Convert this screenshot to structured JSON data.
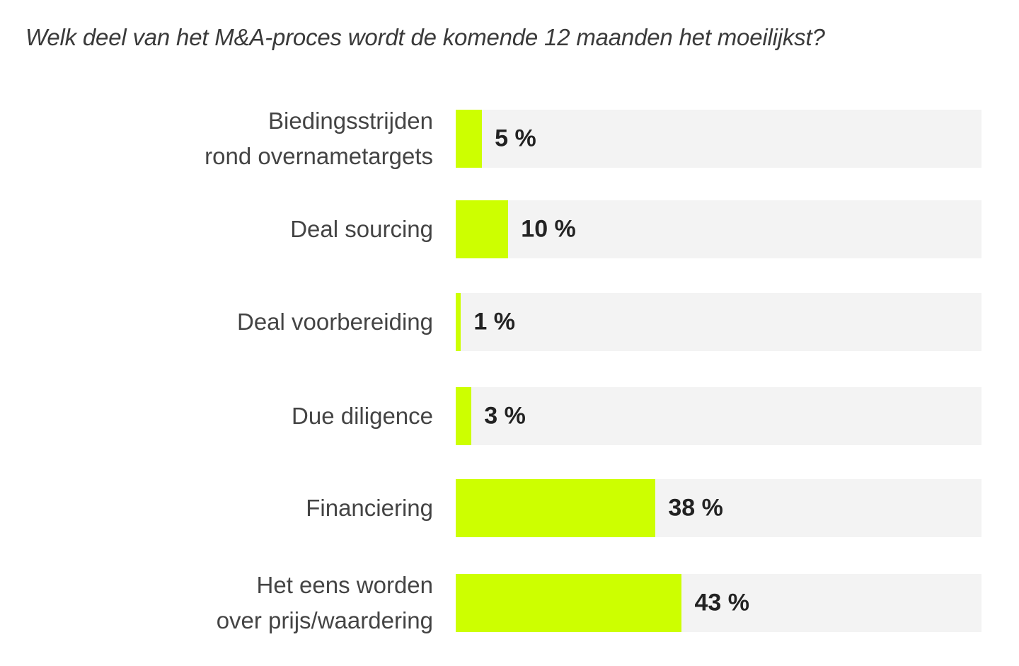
{
  "chart_data": {
    "type": "bar",
    "orientation": "horizontal",
    "title": "Welk deel van het M&A-proces wordt de komende 12 maanden het moeilijkst?",
    "categories": [
      [
        "Biedingsstrijden",
        "rond overnametargets"
      ],
      [
        "Deal sourcing"
      ],
      [
        "Deal voorbereiding"
      ],
      [
        "Due diligence"
      ],
      [
        "Financiering"
      ],
      [
        "Het eens worden",
        "over prijs/waardering"
      ]
    ],
    "values": [
      5,
      10,
      1,
      3,
      38,
      43
    ],
    "value_labels": [
      "5 %",
      "10 %",
      "1 %",
      "3 %",
      "38 %",
      "43 %"
    ],
    "xlim": [
      0,
      100
    ],
    "grid": false,
    "legend": "none",
    "bar_color": "#cdff00",
    "track_color": "#f3f3f3"
  }
}
